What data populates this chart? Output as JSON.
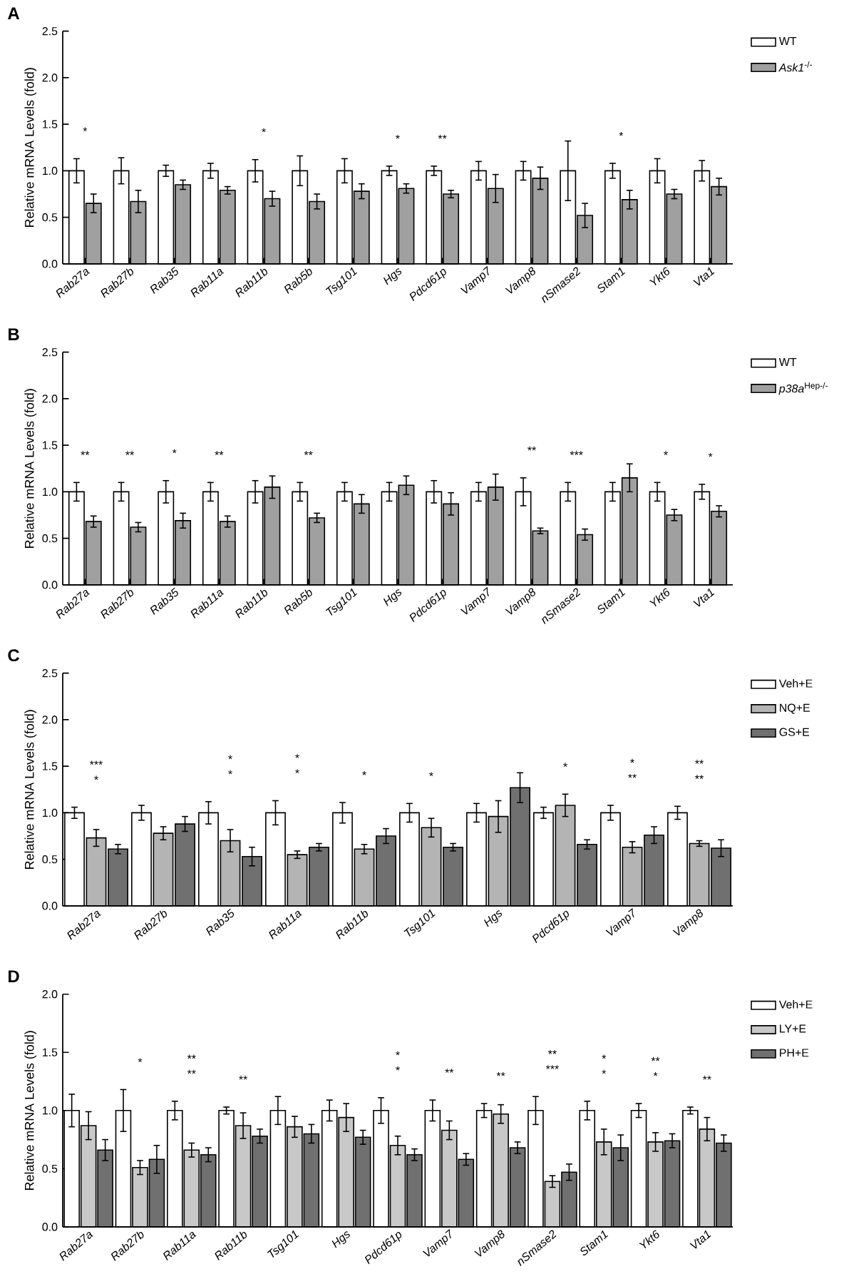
{
  "chart_data": [
    {
      "type": "bar",
      "title": "A",
      "ylabel": "Relative mRNA Levels (fold)",
      "legend": "right",
      "categories": [
        "Rab27a",
        "Rab27b",
        "Rab35",
        "Rab11a",
        "Rab11b",
        "Rab5b",
        "Tsg101",
        "Hgs",
        "Pdcd61p",
        "Vamp7",
        "Vamp8",
        "nSmase2",
        "Stam1",
        "Ykt6",
        "Vta1"
      ],
      "ylim": [
        0,
        2.5
      ],
      "yticks": [
        {
          "value": 0,
          "label": "0.0"
        },
        0.5,
        {
          "value": 1,
          "label": "1.0"
        },
        1.5,
        {
          "value": 2,
          "label": "2.0"
        },
        2.5
      ],
      "series": [
        {
          "name": "WT",
          "color": "#ffffff",
          "values": [
            1,
            1,
            1,
            1,
            1,
            1,
            1,
            1,
            1,
            1,
            1,
            1,
            1,
            1,
            1
          ],
          "errors": [
            0.13,
            0.14,
            0.06,
            0.08,
            0.12,
            0.16,
            0.13,
            0.05,
            0.05,
            0.1,
            0.1,
            0.32,
            0.08,
            0.13,
            0.11
          ]
        },
        {
          "name": "*Ask1*$^{-/-}$",
          "color": "#a0a0a0",
          "values": [
            0.65,
            0.67,
            0.85,
            0.79,
            0.7,
            0.67,
            0.78,
            0.81,
            0.75,
            0.81,
            0.92,
            0.52,
            0.69,
            0.75,
            0.83
          ],
          "errors": [
            0.1,
            0.12,
            0.05,
            0.04,
            0.08,
            0.08,
            0.08,
            0.05,
            0.04,
            0.15,
            0.12,
            0.13,
            0.1,
            0.05,
            0.09
          ]
        }
      ],
      "annotations": [
        "*",
        "*",
        "*",
        "**",
        "*"
      ]
    },
    {
      "type": "bar",
      "title": "B",
      "ylabel": "Relative mRNA Levels (fold)",
      "legend": "right",
      "categories": [
        "Rab27a",
        "Rab27b",
        "Rab35",
        "Rab11a",
        "Rab11b",
        "Rab5b",
        "Tsg101",
        "Hgs",
        "Pdcd61p",
        "Vamp7",
        "Vamp8",
        "nSmase2",
        "Stam1",
        "Ykt6",
        "Vta1"
      ],
      "ylim": [
        0,
        2.5
      ],
      "yticks": [
        {
          "value": 0,
          "label": "0.0"
        },
        0.5,
        {
          "value": 1,
          "label": "1.0"
        },
        1.5,
        {
          "value": 2,
          "label": "2.0"
        },
        2.5
      ],
      "series": [
        {
          "name": "WT",
          "color": "#ffffff",
          "values": [
            1,
            1,
            1,
            1,
            1,
            1,
            1,
            1,
            1,
            1,
            1,
            1,
            1,
            1,
            1
          ],
          "errors": [
            0.1,
            0.1,
            0.12,
            0.1,
            0.12,
            0.1,
            0.1,
            0.1,
            0.12,
            0.1,
            0.15,
            0.1,
            0.1,
            0.1,
            0.08
          ]
        },
        {
          "name": "*p38a*$^{Hep-/-}$",
          "color": "#a0a0a0",
          "values": [
            0.68,
            0.62,
            0.69,
            0.68,
            1.05,
            0.72,
            0.87,
            1.07,
            0.87,
            1.05,
            0.58,
            0.54,
            1.15,
            0.75,
            0.79
          ],
          "errors": [
            0.06,
            0.05,
            0.08,
            0.06,
            0.12,
            0.05,
            0.1,
            0.1,
            0.12,
            0.14,
            0.03,
            0.06,
            0.15,
            0.06,
            0.06
          ]
        }
      ],
      "annotations": [
        "**",
        "**",
        "*",
        "**",
        "**",
        "**",
        "***",
        "*",
        "*"
      ]
    },
    {
      "type": "bar",
      "title": "C",
      "ylabel": "Relative mRNA Levels (fold)",
      "legend": "right",
      "categories": [
        "Rab27a",
        "Rab27b",
        "Rab35",
        "Rab11a",
        "Rab11b",
        "Tsg101",
        "Hgs",
        "Pdcd61p",
        "Vamp7",
        "Vamp8"
      ],
      "ylim": [
        0,
        2.5
      ],
      "yticks": [
        {
          "value": 0,
          "label": "0.0"
        },
        0.5,
        {
          "value": 1,
          "label": "1.0"
        },
        1.5,
        {
          "value": 2,
          "label": "2.0"
        },
        2.5
      ],
      "series": [
        {
          "name": "Veh+E",
          "color": "#ffffff",
          "values": [
            1,
            1,
            1,
            1,
            1,
            1,
            1,
            1,
            1,
            1
          ],
          "errors": [
            0.06,
            0.08,
            0.12,
            0.13,
            0.11,
            0.1,
            0.1,
            0.06,
            0.08,
            0.07
          ]
        },
        {
          "name": "NQ+E",
          "color": "#b4b4b4",
          "values": [
            0.73,
            0.78,
            0.7,
            0.55,
            0.61,
            0.84,
            0.96,
            1.08,
            0.63,
            0.67
          ],
          "errors": [
            0.09,
            0.07,
            0.12,
            0.04,
            0.05,
            0.1,
            0.17,
            0.12,
            0.06,
            0.03
          ]
        },
        {
          "name": "GS+E",
          "color": "#707070",
          "values": [
            0.61,
            0.88,
            0.53,
            0.63,
            0.75,
            0.63,
            1.27,
            0.66,
            0.76,
            0.62
          ],
          "errors": [
            0.05,
            0.08,
            0.1,
            0.04,
            0.08,
            0.04,
            0.16,
            0.05,
            0.09,
            0.09
          ]
        }
      ],
      "annotations": [
        "*",
        "***",
        "*",
        "*",
        "*",
        "*",
        "*",
        "*",
        "*",
        "**",
        "*",
        "**",
        "**"
      ]
    },
    {
      "type": "bar",
      "title": "D",
      "ylabel": "Relative mRNA Levels (fold)",
      "legend": "right",
      "categories": [
        "Rab27a",
        "Rab27b",
        "Rab11a",
        "Rab11b",
        "Tsg101",
        "Hgs",
        "Pdcd61p",
        "Vamp7",
        "Vamp8",
        "nSmase2",
        "Stam1",
        "Ykt6",
        "Vta1"
      ],
      "ylim": [
        0,
        2
      ],
      "yticks": [
        {
          "value": 0,
          "label": "0.0"
        },
        0.5,
        {
          "value": 1,
          "label": "1.0"
        },
        1.5,
        {
          "value": 2,
          "label": "2.0"
        }
      ],
      "series": [
        {
          "name": "Veh+E",
          "color": "#ffffff",
          "values": [
            1,
            1,
            1,
            1,
            1,
            1,
            1,
            1,
            1,
            1,
            1,
            1,
            1
          ],
          "errors": [
            0.14,
            0.18,
            0.08,
            0.03,
            0.12,
            0.09,
            0.11,
            0.09,
            0.06,
            0.12,
            0.08,
            0.06,
            0.03
          ]
        },
        {
          "name": "LY+E",
          "color": "#c8c8c8",
          "values": [
            0.87,
            0.51,
            0.66,
            0.87,
            0.86,
            0.94,
            0.7,
            0.83,
            0.97,
            0.39,
            0.73,
            0.73,
            0.84
          ],
          "errors": [
            0.12,
            0.06,
            0.06,
            0.11,
            0.09,
            0.12,
            0.08,
            0.08,
            0.08,
            0.05,
            0.11,
            0.08,
            0.1
          ]
        },
        {
          "name": "PH+E",
          "color": "#707070",
          "values": [
            0.66,
            0.58,
            0.62,
            0.78,
            0.8,
            0.77,
            0.62,
            0.58,
            0.68,
            0.47,
            0.68,
            0.74,
            0.72
          ],
          "errors": [
            0.09,
            0.12,
            0.06,
            0.06,
            0.08,
            0.06,
            0.05,
            0.05,
            0.05,
            0.07,
            0.11,
            0.06,
            0.07
          ]
        }
      ],
      "annotations": [
        "*",
        "**",
        "**",
        "**",
        "*",
        "*",
        "**",
        "**",
        "***",
        "**",
        "*",
        "*",
        "*",
        "**",
        "**"
      ]
    }
  ]
}
